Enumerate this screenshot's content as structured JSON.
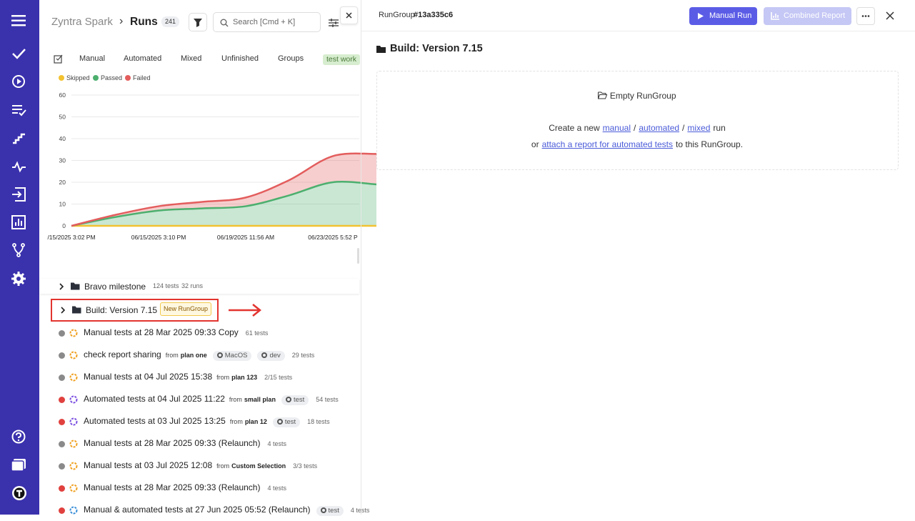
{
  "header": {
    "breadcrumb": "Zyntra Spark",
    "separator": "›",
    "title": "Runs",
    "count": "241",
    "search_placeholder": "Search [Cmd + K]"
  },
  "tabs": [
    "Manual",
    "Automated",
    "Mixed",
    "Unfinished",
    "Groups",
    "test work"
  ],
  "chart_data": {
    "type": "area",
    "stacked": true,
    "categories": [
      "/15/2025 3:02 PM",
      null,
      "06/15/2025 3:10 PM",
      null,
      "06/19/2025 11:56 AM",
      null,
      "06/23/2025 5:52 P",
      null
    ],
    "series": [
      {
        "name": "Skipped",
        "color": "#f2c230",
        "values": [
          0,
          0,
          0,
          0,
          0,
          0,
          0,
          0
        ]
      },
      {
        "name": "Passed",
        "color": "#4caf6e",
        "values": [
          0,
          4,
          7,
          8,
          9,
          14,
          20,
          19
        ]
      },
      {
        "name": "Failed",
        "color": "#e35d5d",
        "values": [
          0,
          1,
          2,
          3,
          4,
          7,
          12,
          14
        ]
      }
    ],
    "ylim": [
      0,
      60
    ],
    "yticks": [
      0,
      10,
      20,
      30,
      40,
      50,
      60
    ],
    "grid": true
  },
  "groups": [
    {
      "name": "Bravo milestone",
      "tests": "124 tests",
      "runs": "32 runs"
    },
    {
      "name": "Build: Version 7.15",
      "badge": "New RunGroup"
    }
  ],
  "runs": {
    "from_word": "from",
    "items": [
      {
        "title": "Manual tests at 28 Mar 2025 09:33 Copy",
        "tests": "61 tests",
        "dot": "#8a8a8a",
        "icon_color": "#f0a020"
      },
      {
        "title": "check report sharing",
        "plan": "plan one",
        "tags": [
          "MacOS",
          "dev"
        ],
        "tests": "29 tests",
        "dot": "#8a8a8a",
        "icon_color": "#f0a020"
      },
      {
        "title": "Manual tests at 04 Jul 2025 15:38",
        "plan": "plan 123",
        "tests": "2/15 tests",
        "dot": "#8a8a8a",
        "icon_color": "#f0a020"
      },
      {
        "title": "Automated tests at 04 Jul 2025 11:22",
        "plan": "small plan",
        "tags": [
          "test"
        ],
        "tests": "54 tests",
        "dot": "#e0413e",
        "icon_color": "#7a4fe0"
      },
      {
        "title": "Automated tests at 03 Jul 2025 13:25",
        "plan": "plan 12",
        "tags": [
          "test"
        ],
        "tests": "18 tests",
        "dot": "#e0413e",
        "icon_color": "#7a4fe0"
      },
      {
        "title": "Manual tests at 28 Mar 2025 09:33 (Relaunch)",
        "tests": "4 tests",
        "dot": "#8a8a8a",
        "icon_color": "#f0a020"
      },
      {
        "title": "Manual tests at 03 Jul 2025 12:08",
        "plan": "Custom Selection",
        "tests": "3/3 tests",
        "dot": "#8a8a8a",
        "icon_color": "#f0a020"
      },
      {
        "title": "Manual tests at 28 Mar 2025 09:33 (Relaunch)",
        "tests": "4 tests",
        "dot": "#e0413e",
        "icon_color": "#f0a020"
      },
      {
        "title": "Manual & automated tests at 27 Jun 2025 05:52 (Relaunch)",
        "tags": [
          "test"
        ],
        "tests": "4 tests",
        "dot": "#e0413e",
        "icon_color": "#3a8fd8"
      }
    ]
  },
  "detail": {
    "label": "RunGroup",
    "id": "#13a335c6",
    "buttons": [
      "Manual Run",
      "Combined Report"
    ],
    "title": "Build: Version 7.15",
    "empty_title": "Empty RunGroup",
    "line1": [
      "Create a new",
      "manual",
      "/",
      "automated",
      "/",
      "mixed",
      "run"
    ],
    "line2": [
      "or",
      "attach a report for automated tests",
      "to this RunGroup."
    ]
  }
}
